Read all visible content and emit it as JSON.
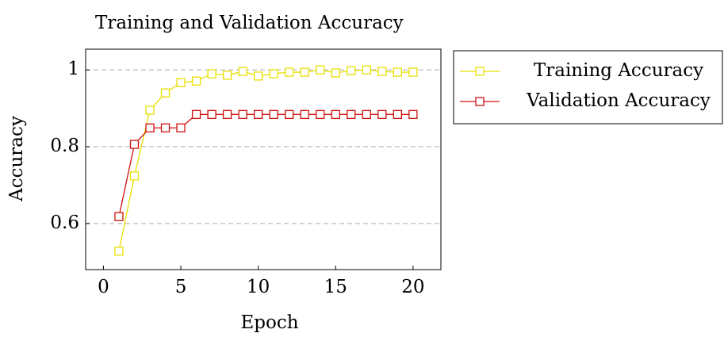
{
  "chart_data": {
    "type": "line",
    "title": "Training and Validation Accuracy",
    "x_label": "Epoch",
    "y_label": "Accuracy",
    "x": [
      1,
      2,
      3,
      4,
      5,
      6,
      7,
      8,
      9,
      10,
      11,
      12,
      13,
      14,
      15,
      16,
      17,
      18,
      19,
      20
    ],
    "series": [
      {
        "name": "Training Accuracy",
        "color": "#e8e000",
        "values": [
          0.528,
          0.724,
          0.895,
          0.94,
          0.967,
          0.971,
          0.99,
          0.986,
          0.996,
          0.984,
          0.99,
          0.994,
          0.994,
          1.0,
          0.992,
          0.998,
          1.0,
          0.996,
          0.994,
          0.994
        ]
      },
      {
        "name": "Validation Accuracy",
        "color": "#d01010",
        "values": [
          0.618,
          0.806,
          0.849,
          0.849,
          0.849,
          0.884,
          0.884,
          0.884,
          0.884,
          0.884,
          0.884,
          0.884,
          0.884,
          0.884,
          0.884,
          0.884,
          0.884,
          0.884,
          0.884,
          0.884
        ]
      }
    ],
    "xlim": [
      -1.15,
      21.8
    ],
    "ylim": [
      0.48,
      1.054
    ],
    "xticks": [
      0,
      5,
      10,
      15,
      20
    ],
    "yticks": [
      0.6,
      0.8,
      1
    ],
    "grid": true,
    "legend": "outside-right"
  }
}
